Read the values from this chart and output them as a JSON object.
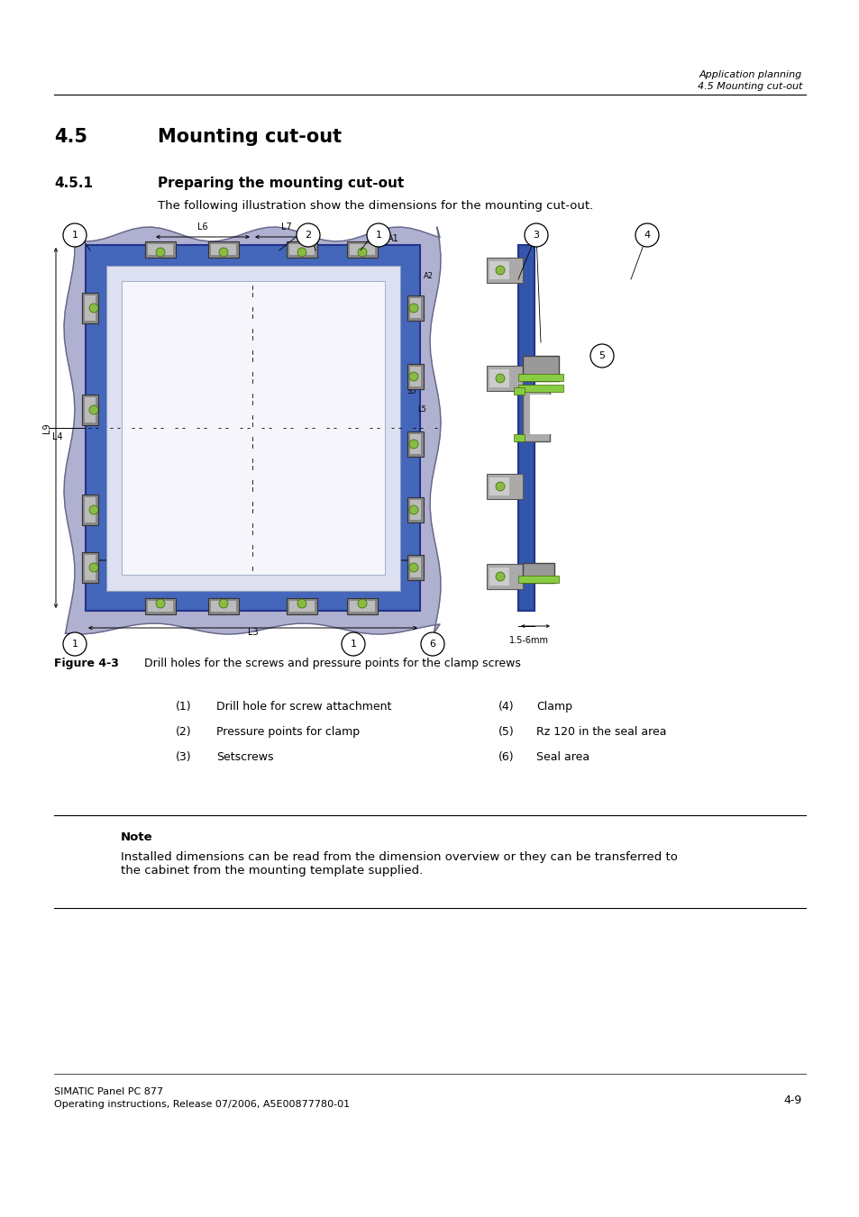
{
  "page_bg": "#ffffff",
  "header_text1": "Application planning",
  "header_text2": "4.5 Mounting cut-out",
  "section_title": "4.5",
  "section_title_text": "Mounting cut-out",
  "subsection_num": "4.5.1",
  "subsection_text": "Preparing the mounting cut-out",
  "intro_text": "The following illustration show the dimensions for the mounting cut-out.",
  "figure_caption_bold": "Figure 4-3",
  "figure_caption_text": "Drill holes for the screws and pressure points for the clamp screws",
  "legend_items_left": [
    [
      "(1)",
      "Drill hole for screw attachment"
    ],
    [
      "(2)",
      "Pressure points for clamp"
    ],
    [
      "(3)",
      "Setscrews"
    ]
  ],
  "legend_items_right": [
    [
      "(4)",
      "Clamp"
    ],
    [
      "(5)",
      "Rz 120 in the seal area"
    ],
    [
      "(6)",
      "Seal area"
    ]
  ],
  "note_label": "Note",
  "note_text": "Installed dimensions can be read from the dimension overview or they can be transferred to\nthe cabinet from the mounting template supplied.",
  "footer_left1": "SIMATIC Panel PC 877",
  "footer_left2": "Operating instructions, Release 07/2006, A5E00877780-01",
  "footer_right": "4-9"
}
